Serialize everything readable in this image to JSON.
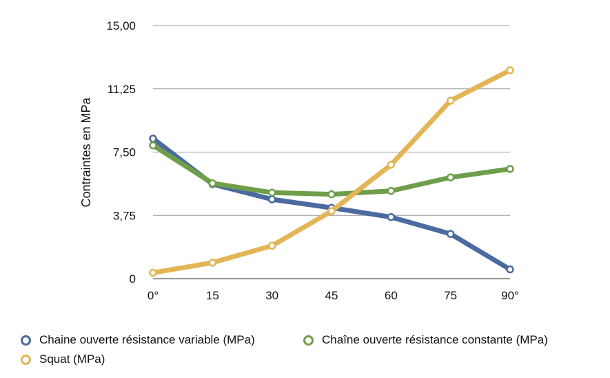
{
  "chart_data": {
    "type": "line",
    "title": "",
    "xlabel": "",
    "ylabel": "Contraintes en MPa",
    "categories": [
      "0°",
      "15",
      "30",
      "45",
      "60",
      "75",
      "90°"
    ],
    "y_ticks": [
      "0",
      "3,75",
      "7,50",
      "11,25",
      "15,00"
    ],
    "ylim": [
      0,
      15
    ],
    "grid": true,
    "legend_position": "bottom",
    "series": [
      {
        "name": "Chaine ouverte résistance variable (MPa)",
        "color": "#4a6aa0",
        "values": [
          8.3,
          5.6,
          4.7,
          4.2,
          3.65,
          2.65,
          0.55
        ]
      },
      {
        "name": "Chaîne ouverte résistance constante (MPa)",
        "color": "#6f9e4a",
        "values": [
          7.9,
          5.65,
          5.1,
          5.0,
          5.2,
          6.0,
          6.5
        ]
      },
      {
        "name": "Squat (MPa)",
        "color": "#e3b556",
        "values": [
          0.35,
          0.95,
          1.95,
          4.0,
          6.75,
          10.55,
          12.35
        ]
      }
    ]
  }
}
